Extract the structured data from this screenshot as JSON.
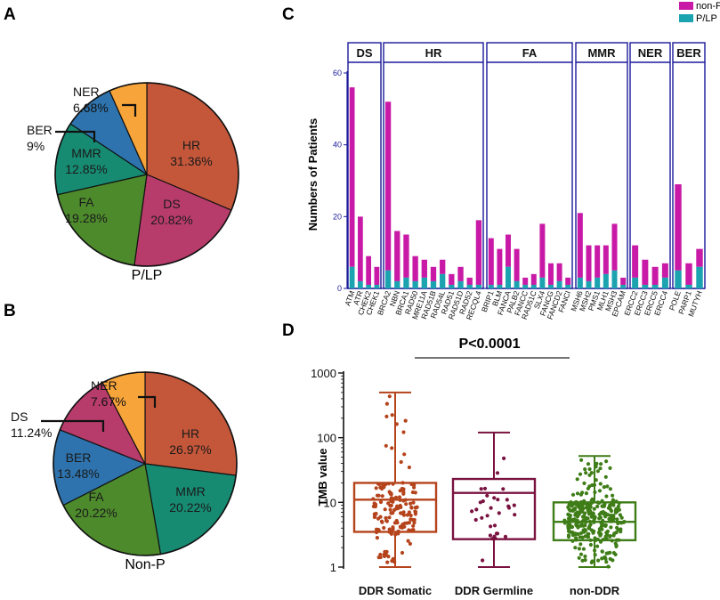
{
  "panels": {
    "A": "A",
    "B": "B",
    "C": "C",
    "D": "D"
  },
  "colors": {
    "HR": "#c4573a",
    "DS": "#b83c6b",
    "FA": "#4d8a2c",
    "MMR": "#178b72",
    "BER": "#2e73ad",
    "NER": "#f7a43a",
    "nonP": "#c81aa6",
    "PLP": "#1ba3b0",
    "group_border": "#1a1a9a",
    "ddr_somatic": "#b5431b",
    "ddr_germline": "#7a1240",
    "non_ddr": "#3e7d17"
  },
  "chart_data": [
    {
      "type": "pie",
      "panel": "A",
      "caption": "P/LP",
      "slices": [
        {
          "key": "HR",
          "name": "HR",
          "label": "31.36%",
          "value": 31.36
        },
        {
          "key": "DS",
          "name": "DS",
          "label": "20.82%",
          "value": 20.82
        },
        {
          "key": "FA",
          "name": "FA",
          "label": "19.28%",
          "value": 19.28
        },
        {
          "key": "MMR",
          "name": "MMR",
          "label": "12.85%",
          "value": 12.85
        },
        {
          "key": "BER",
          "name": "BER",
          "label": "9%",
          "value": 9.0
        },
        {
          "key": "NER",
          "name": "NER",
          "label": "6.68%",
          "value": 6.68
        }
      ]
    },
    {
      "type": "pie",
      "panel": "B",
      "caption": "Non-P",
      "slices": [
        {
          "key": "HR",
          "name": "HR",
          "label": "26.97%",
          "value": 26.97
        },
        {
          "key": "MMR",
          "name": "MMR",
          "label": "20.22%",
          "value": 20.22
        },
        {
          "key": "FA",
          "name": "FA",
          "label": "20.22%",
          "value": 20.22
        },
        {
          "key": "BER",
          "name": "BER",
          "label": "13.48%",
          "value": 13.48
        },
        {
          "key": "DS",
          "name": "DS",
          "label": "11.24%",
          "value": 11.24
        },
        {
          "key": "NER",
          "name": "NER",
          "label": "7.67%",
          "value": 7.67
        }
      ]
    },
    {
      "type": "bar",
      "panel": "C",
      "stacked": true,
      "ylabel": "Numbers of Patients",
      "ylim": [
        0,
        60
      ],
      "yticks": [
        0,
        20,
        40,
        60
      ],
      "legend": [
        {
          "key": "nonP",
          "label": "non-P"
        },
        {
          "key": "PLP",
          "label": "P/LP"
        }
      ],
      "groups": [
        {
          "name": "DS",
          "genes": [
            {
              "gene": "ATM",
              "plp": 6,
              "total": 56
            },
            {
              "gene": "ATR",
              "plp": 2,
              "total": 20
            },
            {
              "gene": "CHEK2",
              "plp": 1,
              "total": 9
            },
            {
              "gene": "CHEK1",
              "plp": 1,
              "total": 6
            }
          ]
        },
        {
          "name": "HR",
          "genes": [
            {
              "gene": "BRCA2",
              "plp": 5,
              "total": 52
            },
            {
              "gene": "NBN",
              "plp": 2,
              "total": 16
            },
            {
              "gene": "BRCA1",
              "plp": 3,
              "total": 15
            },
            {
              "gene": "RAD50",
              "plp": 2,
              "total": 9
            },
            {
              "gene": "MRE11A",
              "plp": 3,
              "total": 8
            },
            {
              "gene": "RAD51B",
              "plp": 2,
              "total": 6
            },
            {
              "gene": "RAD54L",
              "plp": 4,
              "total": 8
            },
            {
              "gene": "RAD51",
              "plp": 1,
              "total": 4
            },
            {
              "gene": "RAD51D",
              "plp": 2,
              "total": 6
            },
            {
              "gene": "RAD52",
              "plp": 1,
              "total": 3
            },
            {
              "gene": "RECQL4",
              "plp": 1,
              "total": 19
            }
          ]
        },
        {
          "name": "FA",
          "genes": [
            {
              "gene": "BRIP1",
              "plp": 1,
              "total": 14
            },
            {
              "gene": "BLM",
              "plp": 1,
              "total": 11
            },
            {
              "gene": "FANCA",
              "plp": 6,
              "total": 15
            },
            {
              "gene": "PALB2",
              "plp": 2,
              "total": 11
            },
            {
              "gene": "FANCC",
              "plp": 1,
              "total": 3
            },
            {
              "gene": "RAD51C",
              "plp": 1,
              "total": 4
            },
            {
              "gene": "SLX4",
              "plp": 3,
              "total": 18
            },
            {
              "gene": "FANCG",
              "plp": 1,
              "total": 7
            },
            {
              "gene": "FANCD2",
              "plp": 2,
              "total": 7
            },
            {
              "gene": "FANCI",
              "plp": 1,
              "total": 3
            }
          ]
        },
        {
          "name": "MMR",
          "genes": [
            {
              "gene": "MSH6",
              "plp": 3,
              "total": 21
            },
            {
              "gene": "MSH2",
              "plp": 2,
              "total": 12
            },
            {
              "gene": "PMS1",
              "plp": 3,
              "total": 12
            },
            {
              "gene": "MLH1",
              "plp": 4,
              "total": 12
            },
            {
              "gene": "MSH3",
              "plp": 5,
              "total": 18
            },
            {
              "gene": "EPCAM",
              "plp": 1,
              "total": 3
            }
          ]
        },
        {
          "name": "NER",
          "genes": [
            {
              "gene": "ERCC2",
              "plp": 3,
              "total": 12
            },
            {
              "gene": "ERCC3",
              "plp": 1,
              "total": 8
            },
            {
              "gene": "ERCC5",
              "plp": 1,
              "total": 6
            },
            {
              "gene": "ERCC4",
              "plp": 3,
              "total": 7
            }
          ]
        },
        {
          "name": "BER",
          "genes": [
            {
              "gene": "POLE",
              "plp": 5,
              "total": 29
            },
            {
              "gene": "PARP1",
              "plp": 1,
              "total": 7
            },
            {
              "gene": "MUTYH",
              "plp": 6,
              "total": 11
            }
          ]
        }
      ]
    },
    {
      "type": "scatter",
      "subtype": "box-dot",
      "panel": "D",
      "ylabel": "TMB value",
      "yscale": "log",
      "ylim": [
        1,
        1000
      ],
      "yticks": [
        1,
        10,
        100,
        1000
      ],
      "annotation": "P<0.0001",
      "categories": [
        "DDR Somatic",
        "DDR Germline",
        "non-DDR"
      ],
      "boxes": [
        {
          "key": "ddr_somatic",
          "min": 1,
          "q1": 3.5,
          "median": 11,
          "q3": 20,
          "max": 500
        },
        {
          "key": "ddr_germline",
          "min": 1,
          "q1": 2.7,
          "median": 14,
          "q3": 23,
          "max": 120
        },
        {
          "key": "non_ddr",
          "min": 1,
          "q1": 2.6,
          "median": 5,
          "q3": 10,
          "max": 52
        }
      ]
    }
  ]
}
